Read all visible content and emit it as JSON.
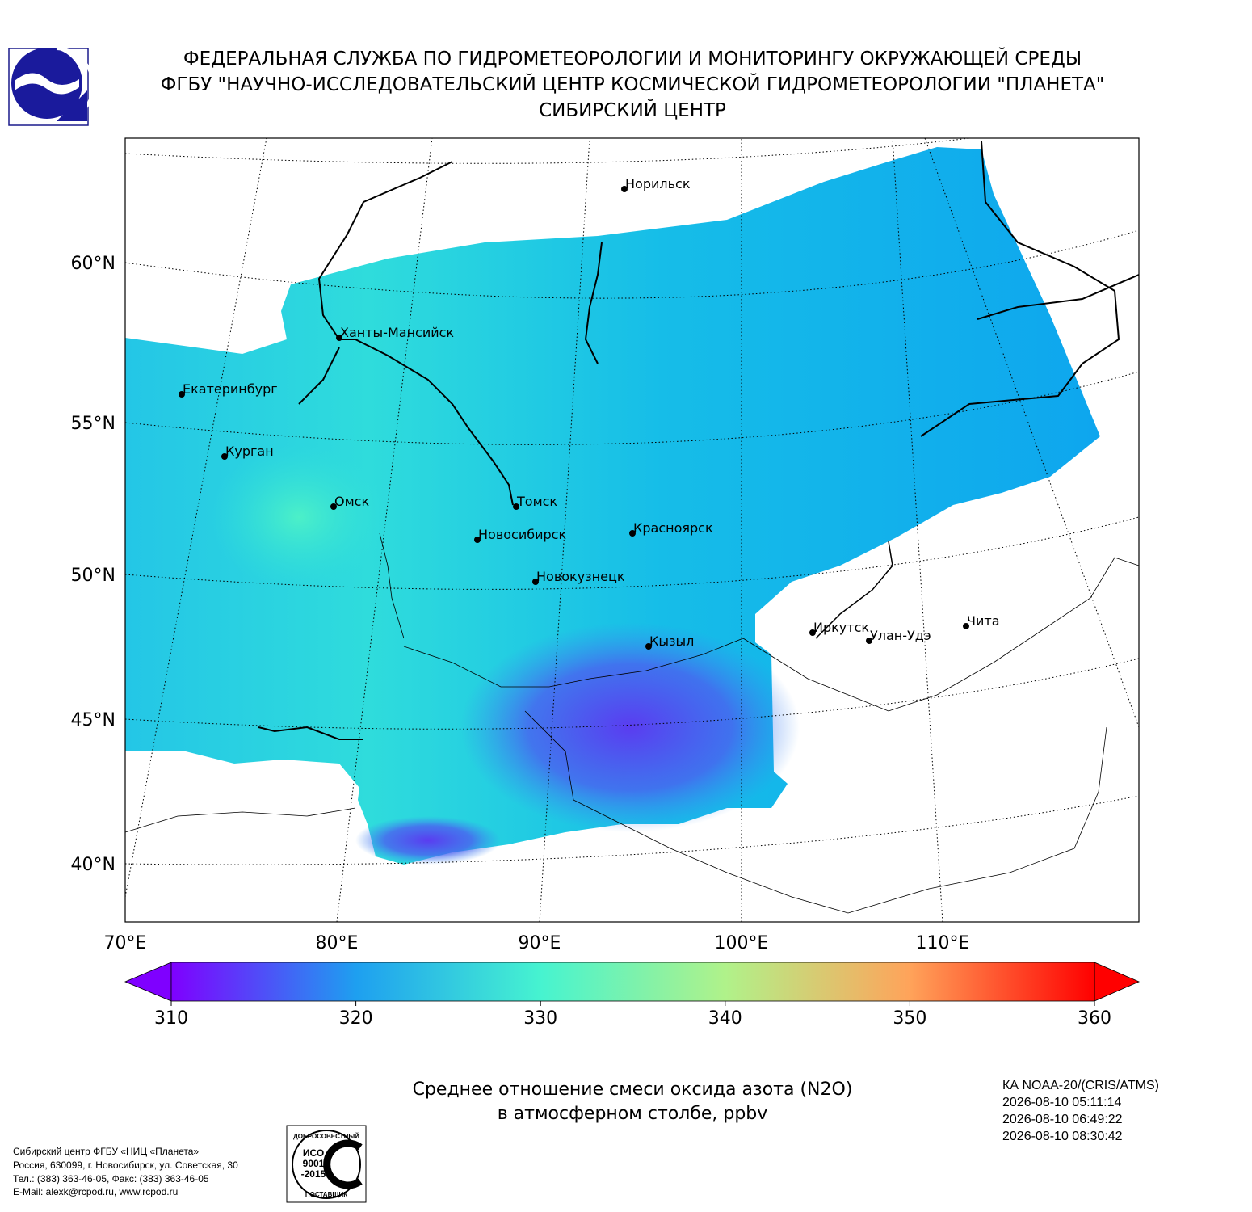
{
  "header": {
    "lines": [
      "ФЕДЕРАЛЬНАЯ СЛУЖБА ПО ГИДРОМЕТЕОРОЛОГИИ И МОНИТОРИНГУ ОКРУЖАЮЩЕЙ СРЕДЫ",
      "ФГБУ \"НАУЧНО-ИССЛЕДОВАТЕЛЬСКИЙ ЦЕНТР КОСМИЧЕСКОЙ ГИДРОМЕТЕОРОЛОГИИ \"ПЛАНЕТА\"",
      "СИБИРСКИЙ ЦЕНТР"
    ]
  },
  "map": {
    "lat_labels": [
      "60°N",
      "55°N",
      "50°N",
      "45°N",
      "40°N"
    ],
    "lon_labels": [
      "70°E",
      "80°E",
      "90°E",
      "100°E",
      "110°E"
    ],
    "cities": [
      "Норильск",
      "Ханты-Мансийск",
      "Екатеринбург",
      "Курган",
      "Омск",
      "Томск",
      "Новосибирск",
      "Красноярск",
      "Новокузнецк",
      "Иркутск",
      "Кызыл",
      "Улан-Удэ",
      "Чита"
    ]
  },
  "colorbar": {
    "lim": [
      310,
      360
    ],
    "ticks": [
      310,
      320,
      330,
      340,
      350,
      360
    ],
    "colors": [
      "#7f00ff",
      "#1e9ff0",
      "#46f3d0",
      "#b0f28a",
      "#ffa35a",
      "#ff0000"
    ]
  },
  "caption": [
    "Среднее отношение смеси оксида азота (N2O)",
    "в атмосферном столбе, ppbv"
  ],
  "satellite_info": [
    "КА NOAA-20/(CRIS/ATMS)",
    "2026-08-10 05:11:14",
    "2026-08-10 06:49:22",
    "2026-08-10 08:30:42"
  ],
  "footer": {
    "address": [
      "Сибирский центр ФГБУ «НИЦ «Планета»",
      "Россия, 630099, г. Новосибирск, ул. Советская, 30",
      "Тел.: (383) 363-46-05, Факс: (383) 363-46-05",
      "E-Mail: alexk@rcpod.ru, www.rcpod.ru"
    ]
  },
  "certificate": {
    "top": "ДОБРОСОВЕСТНЫЙ",
    "middle": [
      "ИСО",
      "9001",
      "-2015"
    ],
    "bottom": "ПОСТАВЩИК"
  }
}
